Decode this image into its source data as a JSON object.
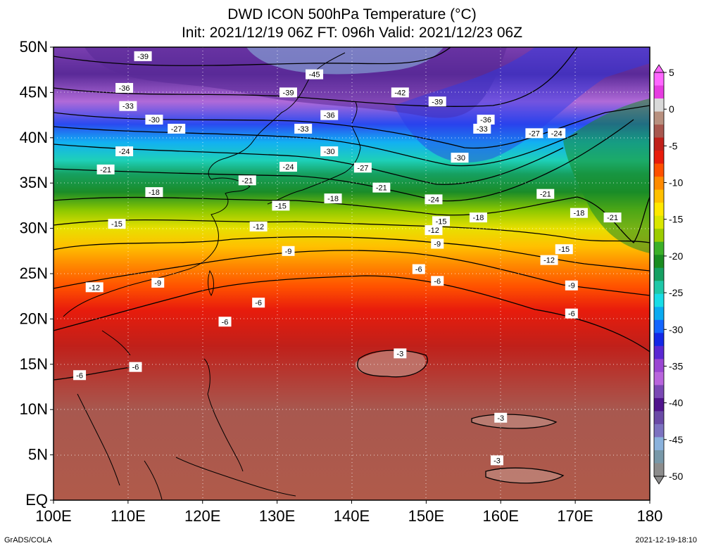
{
  "title": {
    "line1": "DWD ICON 500hPa Temperature (°C)",
    "line2": "Init: 2021/12/19 06Z  FT: 096h  Valid: 2021/12/23 06Z"
  },
  "footer": {
    "left": "GrADS/COLA",
    "right": "2021-12-19-18:10"
  },
  "map": {
    "lon_range": [
      100,
      180
    ],
    "lat_range": [
      0,
      50
    ],
    "lat_ticks": [
      "EQ",
      "5N",
      "10N",
      "15N",
      "20N",
      "25N",
      "30N",
      "35N",
      "40N",
      "45N",
      "50N"
    ],
    "lon_ticks": [
      "100E",
      "110E",
      "120E",
      "130E",
      "140E",
      "150E",
      "160E",
      "170E",
      "180"
    ],
    "contour_labels": [
      {
        "text": "-39",
        "lon": 112,
        "lat": 49
      },
      {
        "text": "-45",
        "lon": 135,
        "lat": 47
      },
      {
        "text": "-36",
        "lon": 109.5,
        "lat": 45.5
      },
      {
        "text": "-39",
        "lon": 131.5,
        "lat": 45
      },
      {
        "text": "-42",
        "lon": 146.5,
        "lat": 45
      },
      {
        "text": "-39",
        "lon": 151.5,
        "lat": 44
      },
      {
        "text": "-33",
        "lon": 110,
        "lat": 43.5
      },
      {
        "text": "-36",
        "lon": 137,
        "lat": 42.5
      },
      {
        "text": "-36",
        "lon": 158,
        "lat": 42
      },
      {
        "text": "-30",
        "lon": 113.5,
        "lat": 42
      },
      {
        "text": "-27",
        "lon": 116.5,
        "lat": 41
      },
      {
        "text": "-33",
        "lon": 133.5,
        "lat": 41
      },
      {
        "text": "-33",
        "lon": 157.5,
        "lat": 41
      },
      {
        "text": "-27",
        "lon": 164.5,
        "lat": 40.5
      },
      {
        "text": "-24",
        "lon": 167.5,
        "lat": 40.5
      },
      {
        "text": "-24",
        "lon": 109.5,
        "lat": 38.5
      },
      {
        "text": "-30",
        "lon": 137,
        "lat": 38.5
      },
      {
        "text": "-30",
        "lon": 154.5,
        "lat": 37.8
      },
      {
        "text": "-21",
        "lon": 107,
        "lat": 36.5
      },
      {
        "text": "-24",
        "lon": 131.5,
        "lat": 36.8
      },
      {
        "text": "-27",
        "lon": 141.5,
        "lat": 36.7
      },
      {
        "text": "-21",
        "lon": 126,
        "lat": 35.3
      },
      {
        "text": "-21",
        "lon": 144,
        "lat": 34.5
      },
      {
        "text": "-18",
        "lon": 113.5,
        "lat": 34
      },
      {
        "text": "-21",
        "lon": 166,
        "lat": 33.8
      },
      {
        "text": "-18",
        "lon": 137.5,
        "lat": 33.3
      },
      {
        "text": "-24",
        "lon": 151,
        "lat": 33.2
      },
      {
        "text": "-15",
        "lon": 130.5,
        "lat": 32.5
      },
      {
        "text": "-18",
        "lon": 170.5,
        "lat": 31.7
      },
      {
        "text": "-21",
        "lon": 175,
        "lat": 31.2
      },
      {
        "text": "-18",
        "lon": 157,
        "lat": 31.2
      },
      {
        "text": "-15",
        "lon": 152,
        "lat": 30.8
      },
      {
        "text": "-15",
        "lon": 108.5,
        "lat": 30.5
      },
      {
        "text": "-12",
        "lon": 127.5,
        "lat": 30.2
      },
      {
        "text": "-12",
        "lon": 151,
        "lat": 29.8
      },
      {
        "text": "-9",
        "lon": 151.5,
        "lat": 28.3
      },
      {
        "text": "-15",
        "lon": 168.5,
        "lat": 27.7
      },
      {
        "text": "-9",
        "lon": 131.5,
        "lat": 27.5
      },
      {
        "text": "-12",
        "lon": 166.5,
        "lat": 26.5
      },
      {
        "text": "-6",
        "lon": 149,
        "lat": 25.5
      },
      {
        "text": "-6",
        "lon": 151.5,
        "lat": 24.2
      },
      {
        "text": "-12",
        "lon": 105.5,
        "lat": 23.5
      },
      {
        "text": "-9",
        "lon": 114,
        "lat": 24
      },
      {
        "text": "-9",
        "lon": 169.5,
        "lat": 23.7
      },
      {
        "text": "-6",
        "lon": 127.5,
        "lat": 21.8
      },
      {
        "text": "-6",
        "lon": 169.5,
        "lat": 20.6
      },
      {
        "text": "-6",
        "lon": 123,
        "lat": 19.7
      },
      {
        "text": "-3",
        "lon": 146.5,
        "lat": 16.2
      },
      {
        "text": "-6",
        "lon": 111,
        "lat": 14.7
      },
      {
        "text": "-6",
        "lon": 103.5,
        "lat": 13.8
      },
      {
        "text": "-3",
        "lon": 160,
        "lat": 9.1
      },
      {
        "text": "-3",
        "lon": 159.5,
        "lat": 4.4
      }
    ]
  },
  "colorbar": {
    "labels": [
      "5",
      "0",
      "-5",
      "-10",
      "-15",
      "-20",
      "-25",
      "-30",
      "-35",
      "-40",
      "-45",
      "-50"
    ],
    "colors": [
      "#ff66ff",
      "#e63ce0",
      "#d9d9d9",
      "#b8907f",
      "#a8584f",
      "#c0201a",
      "#e81c0c",
      "#ff5000",
      "#ff8a00",
      "#ffc000",
      "#ffe800",
      "#d9e600",
      "#9ccc00",
      "#3cb028",
      "#1a8c20",
      "#16a062",
      "#1ec8a8",
      "#18dce6",
      "#0aaaf0",
      "#1466ff",
      "#1428e6",
      "#5a28d2",
      "#9a46d2",
      "#b864dc",
      "#7a48b4",
      "#50148c",
      "#6a4aa6",
      "#7c72c0",
      "#8ab2dc",
      "#7898a8",
      "#8c8c8c"
    ]
  }
}
